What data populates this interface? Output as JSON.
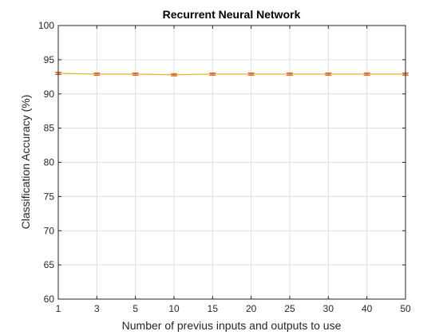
{
  "chart_data": {
    "type": "line",
    "title": "Recurrent Neural Network",
    "xlabel": "Number of previus inputs and outputs to use",
    "ylabel": "Classification Accuracy (%)",
    "categories": [
      "1",
      "3",
      "5",
      "10",
      "15",
      "20",
      "25",
      "30",
      "40",
      "50"
    ],
    "series": [
      {
        "values": [
          93.0,
          92.9,
          92.9,
          92.8,
          92.9,
          92.9,
          92.9,
          92.9,
          92.9,
          92.9
        ],
        "error": [
          0.05,
          0.05,
          0.05,
          0.05,
          0.05,
          0.05,
          0.05,
          0.05,
          0.05,
          0.05
        ],
        "line_color": "#EDB120",
        "error_color": "#D95319"
      }
    ],
    "ylim": [
      60,
      100
    ],
    "yticks": [
      60,
      65,
      70,
      75,
      80,
      85,
      90,
      95,
      100
    ],
    "grid": true,
    "axis_color": "#262626",
    "grid_color": "#DFDFDF"
  }
}
